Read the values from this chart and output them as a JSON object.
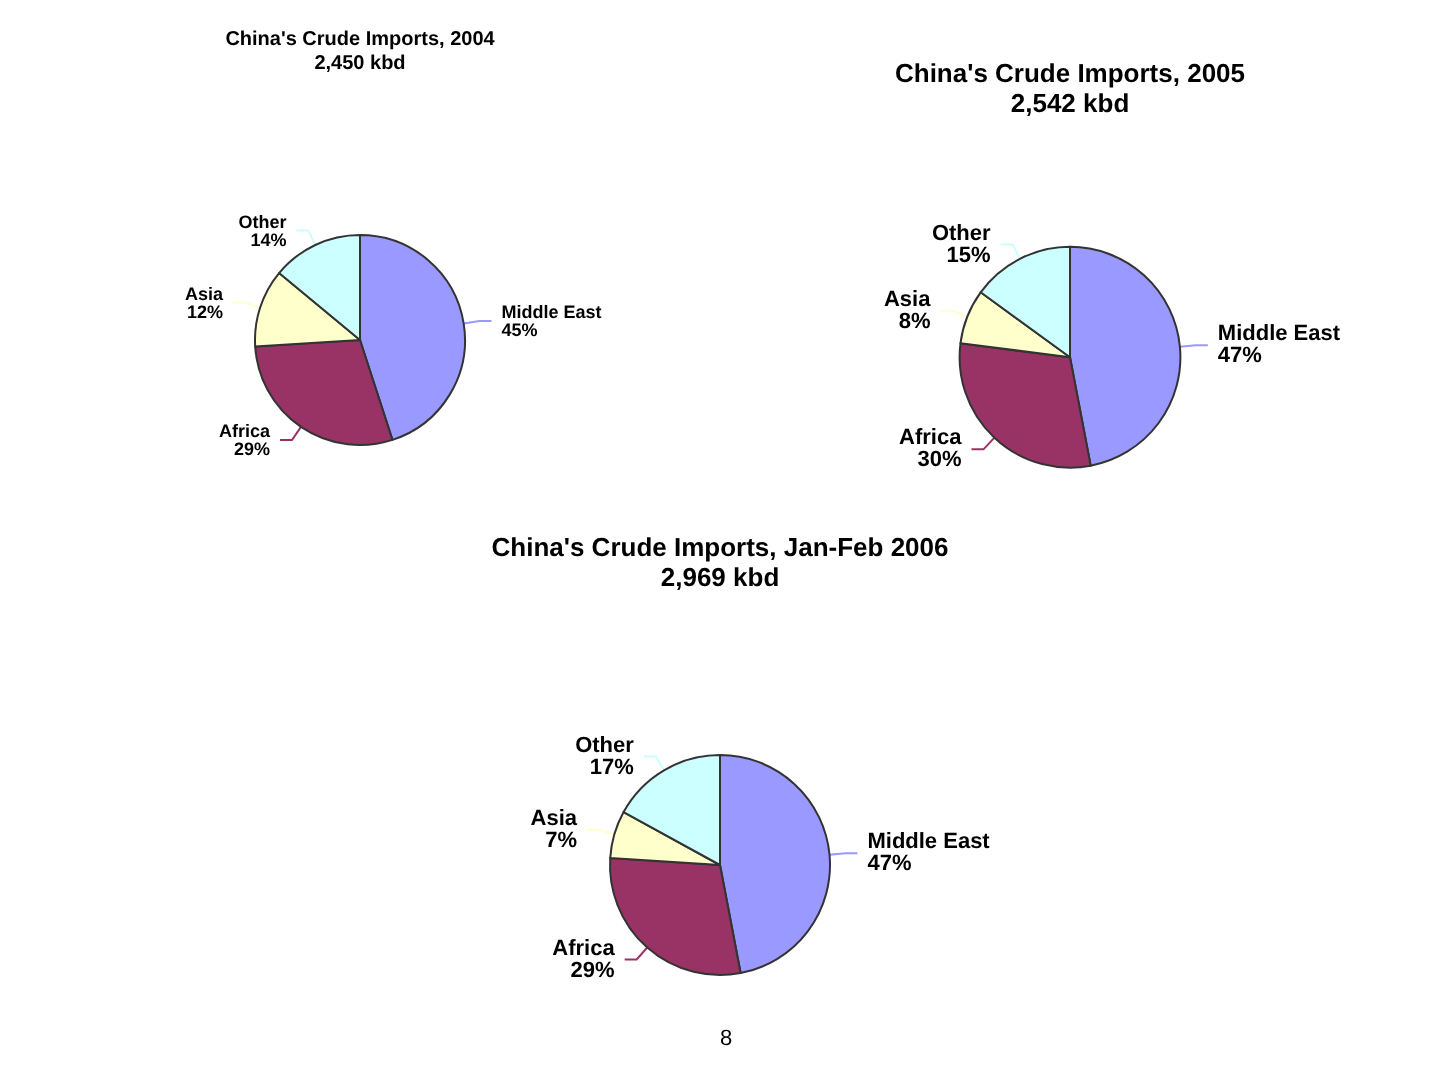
{
  "chart_data": [
    {
      "type": "pie",
      "title": "China's Crude Imports, 2004",
      "subtitle": "2,450 kbd",
      "categories": [
        "Middle East",
        "Africa",
        "Asia",
        "Other"
      ],
      "values": [
        45,
        29,
        12,
        14
      ],
      "value_labels": [
        "45%",
        "29%",
        "12%",
        "14%"
      ],
      "colors": [
        "#9999ff",
        "#993366",
        "#ffffcc",
        "#ccffff"
      ],
      "legend": false
    },
    {
      "type": "pie",
      "title": "China's Crude Imports, 2005",
      "subtitle": "2,542 kbd",
      "categories": [
        "Middle East",
        "Africa",
        "Asia",
        "Other"
      ],
      "values": [
        47,
        30,
        8,
        15
      ],
      "value_labels": [
        "47%",
        "30%",
        "8%",
        "15%"
      ],
      "colors": [
        "#9999ff",
        "#993366",
        "#ffffcc",
        "#ccffff"
      ],
      "legend": false
    },
    {
      "type": "pie",
      "title": "China's Crude Imports, Jan-Feb 2006",
      "subtitle": "2,969 kbd",
      "categories": [
        "Middle East",
        "Africa",
        "Asia",
        "Other"
      ],
      "values": [
        47,
        29,
        7,
        17
      ],
      "value_labels": [
        "47%",
        "29%",
        "7%",
        "17%"
      ],
      "colors": [
        "#9999ff",
        "#993366",
        "#ffffcc",
        "#ccffff"
      ],
      "legend": false,
      "annotations": [
        "8"
      ]
    }
  ]
}
